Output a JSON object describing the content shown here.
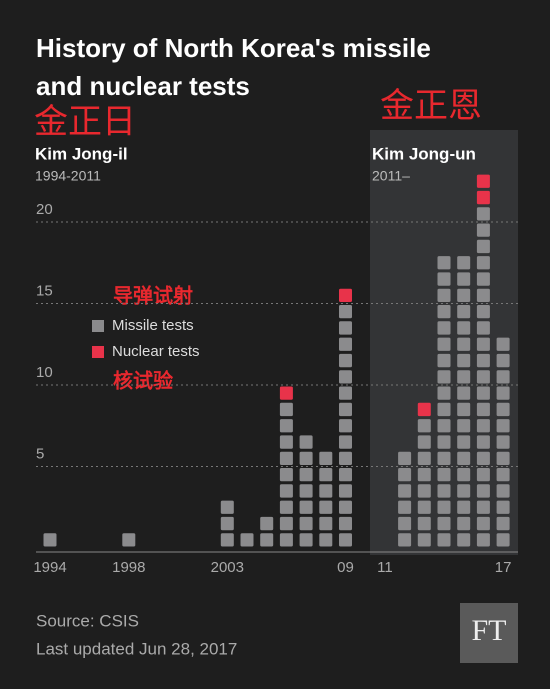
{
  "chart_data": {
    "type": "unit_stacked_bar",
    "title_line1": "History of North Korea's missile",
    "title_line2": "and nuclear tests",
    "annotations": {
      "left_cn": "金正日",
      "left_name": "Kim Jong-il",
      "left_years": "1994-2011",
      "right_cn": "金正恩",
      "right_name": "Kim Jong-un",
      "right_years": "2011–",
      "missile_cn": "导弹试射",
      "nuclear_cn": "核试验"
    },
    "categories": [
      "1994",
      null,
      null,
      null,
      "1998",
      null,
      null,
      null,
      null,
      "2003",
      null,
      null,
      null,
      null,
      null,
      "09",
      null,
      "11",
      null,
      null,
      null,
      null,
      null,
      "17"
    ],
    "series": [
      {
        "name": "Missile tests",
        "color": "#8b8b8d",
        "values": [
          1,
          0,
          0,
          0,
          1,
          0,
          0,
          0,
          0,
          3,
          1,
          2,
          9,
          7,
          6,
          15,
          0,
          0,
          6,
          8,
          18,
          18,
          21,
          13
        ]
      },
      {
        "name": "Nuclear tests",
        "color": "#e8334a",
        "values": [
          0,
          0,
          0,
          0,
          0,
          0,
          0,
          0,
          0,
          0,
          0,
          0,
          1,
          0,
          0,
          1,
          0,
          0,
          0,
          1,
          0,
          0,
          2,
          0
        ]
      }
    ],
    "ylim": [
      0,
      25
    ],
    "yticks": [
      5,
      10,
      15,
      20
    ],
    "grid": true,
    "source": "Source: CSIS",
    "updated": "Last updated Jun 28, 2017",
    "logo": "FT"
  }
}
